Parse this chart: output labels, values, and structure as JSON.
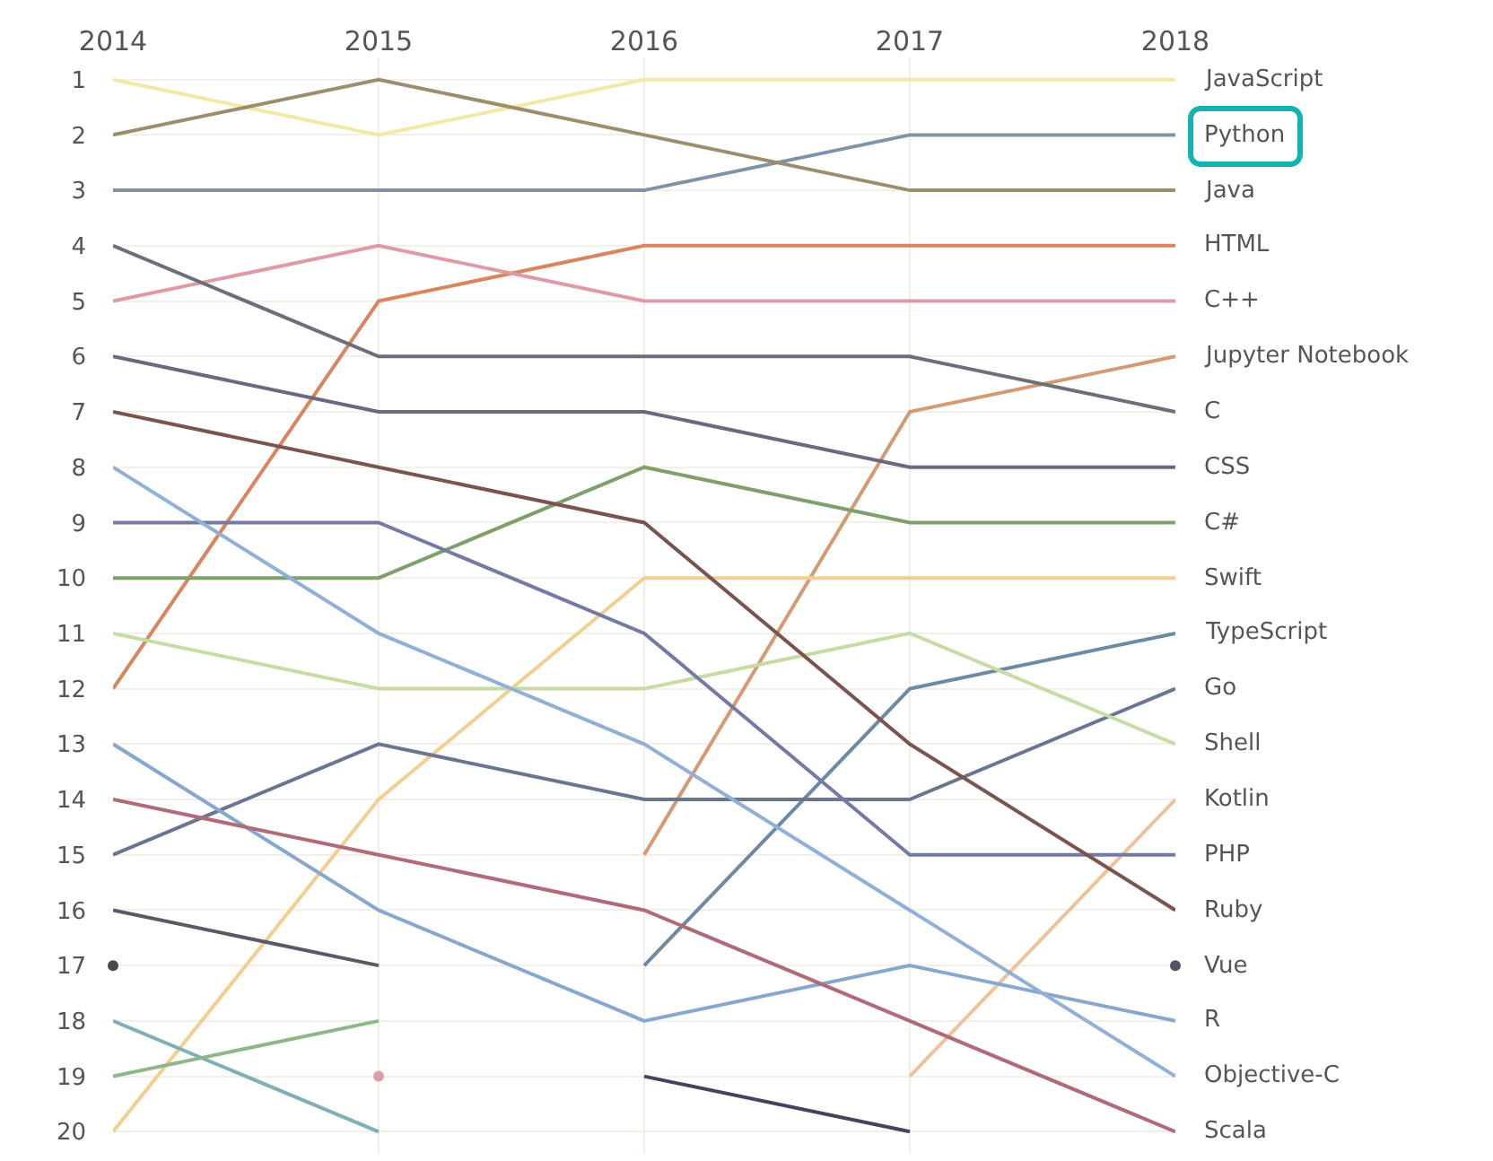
{
  "chart_data": {
    "type": "line",
    "x": [
      2014,
      2015,
      2016,
      2017,
      2018
    ],
    "xlim": [
      2014,
      2018
    ],
    "xticks": [
      2014,
      2015,
      2016,
      2017,
      2018
    ],
    "ylim": [
      20.4,
      0.6
    ],
    "yticks": [
      1,
      2,
      3,
      4,
      5,
      6,
      7,
      8,
      9,
      10,
      11,
      12,
      13,
      14,
      15,
      16,
      17,
      18,
      19,
      20
    ],
    "grid": true,
    "legend": false,
    "series": [
      {
        "name": "JavaScript",
        "color": "#f3e9a6",
        "values": [
          1,
          2,
          1,
          1,
          1
        ]
      },
      {
        "name": "Python",
        "color": "#7c93a8",
        "values": [
          3,
          3,
          3,
          2,
          2
        ]
      },
      {
        "name": "Java",
        "color": "#9c8e6c",
        "values": [
          2,
          1,
          2,
          3,
          3
        ]
      },
      {
        "name": "HTML",
        "color": "#d9855e",
        "values": [
          12,
          5,
          4,
          4,
          4
        ]
      },
      {
        "name": "C++",
        "color": "#e09aa6",
        "values": [
          5,
          4,
          5,
          5,
          5
        ]
      },
      {
        "name": "Jupyter Notebook",
        "color": "#d49a72",
        "values": [
          null,
          null,
          15,
          7,
          6
        ]
      },
      {
        "name": "C",
        "color": "#6a6f7a",
        "values": [
          4,
          6,
          6,
          6,
          7
        ]
      },
      {
        "name": "CSS",
        "color": "#6b6880",
        "values": [
          6,
          7,
          7,
          8,
          8
        ]
      },
      {
        "name": "C#",
        "color": "#7ea06a",
        "values": [
          10,
          10,
          8,
          9,
          9
        ]
      },
      {
        "name": "Swift",
        "color": "#f2cf8f",
        "values": [
          20,
          14,
          10,
          10,
          10
        ]
      },
      {
        "name": "TypeScript",
        "color": "#6b8aa3",
        "values": [
          null,
          null,
          17,
          12,
          11
        ]
      },
      {
        "name": "Go",
        "color": "#6a7590",
        "values": [
          15,
          13,
          14,
          14,
          12
        ]
      },
      {
        "name": "Shell",
        "color": "#c6dca2",
        "values": [
          11,
          12,
          12,
          11,
          13
        ]
      },
      {
        "name": "Kotlin",
        "color": "#f0c29a",
        "values": [
          null,
          null,
          null,
          19,
          14
        ]
      },
      {
        "name": "PHP",
        "color": "#7579a6",
        "values": [
          9,
          9,
          11,
          15,
          15
        ]
      },
      {
        "name": "Ruby",
        "color": "#7a5550",
        "values": [
          7,
          8,
          9,
          13,
          16
        ]
      },
      {
        "name": "Vue",
        "color": "#4f5566",
        "marker": "circle",
        "values": [
          null,
          null,
          null,
          null,
          17
        ]
      },
      {
        "name": "R",
        "color": "#86a8cf",
        "values": [
          13,
          16,
          18,
          17,
          18
        ]
      },
      {
        "name": "Objective-C",
        "color": "#8fb1d8",
        "values": [
          8,
          11,
          13,
          16,
          19
        ]
      },
      {
        "name": "Scala",
        "color": "#b06a78",
        "values": [
          14,
          15,
          16,
          18,
          20
        ]
      },
      {
        "color": "#5a5a66",
        "values": [
          16,
          17,
          null,
          null,
          null
        ]
      },
      {
        "color": "#4d4650",
        "marker": "circle",
        "values": [
          17,
          null,
          null,
          null,
          null
        ]
      },
      {
        "color": "#7fb0b8",
        "values": [
          18,
          20,
          null,
          null,
          null
        ]
      },
      {
        "color": "#d9a0a8",
        "marker": "circle",
        "values": [
          null,
          19,
          null,
          null,
          null
        ]
      },
      {
        "color": "#8fb58a",
        "values": [
          19,
          18,
          null,
          null,
          null
        ]
      },
      {
        "color": "#4a4060",
        "values": [
          null,
          null,
          19,
          20,
          null
        ]
      }
    ]
  }
}
